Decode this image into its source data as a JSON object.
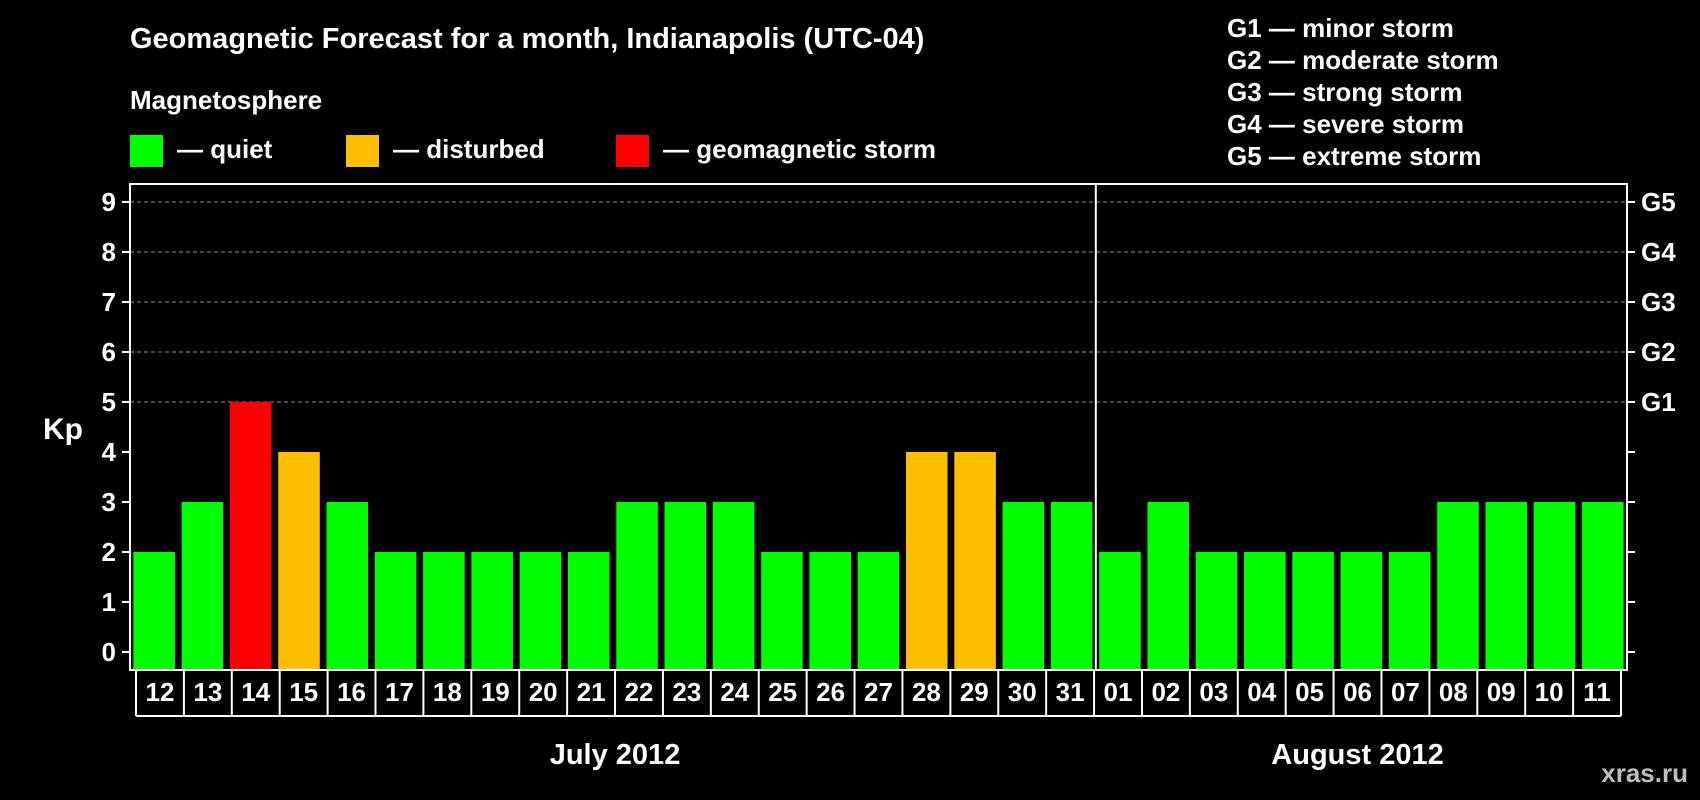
{
  "chart_data": {
    "type": "bar",
    "title": "Geomagnetic Forecast for a month, Indianapolis (UTC-04)",
    "ylabel": "Kp",
    "ylim": [
      0,
      9
    ],
    "yticks": [
      "0",
      "1",
      "2",
      "3",
      "4",
      "5",
      "6",
      "7",
      "8",
      "9"
    ],
    "right_axis_labels": [
      {
        "kp": 5,
        "label": "G1"
      },
      {
        "kp": 6,
        "label": "G2"
      },
      {
        "kp": 7,
        "label": "G3"
      },
      {
        "kp": 8,
        "label": "G4"
      },
      {
        "kp": 9,
        "label": "G5"
      }
    ],
    "legend_title": "Magnetosphere",
    "legend": [
      {
        "key": "quiet",
        "label": "— quiet",
        "color": "#00ff00"
      },
      {
        "key": "disturbed",
        "label": "— disturbed",
        "color": "#ffbf00"
      },
      {
        "key": "storm",
        "label": "— geomagnetic storm",
        "color": "#ff0000"
      }
    ],
    "storm_scale": [
      "G1 — minor storm",
      "G2 — moderate storm",
      "G3 — strong storm",
      "G4 — severe storm",
      "G5 — extreme storm"
    ],
    "categories": [
      "12",
      "13",
      "14",
      "15",
      "16",
      "17",
      "18",
      "19",
      "20",
      "21",
      "22",
      "23",
      "24",
      "25",
      "26",
      "27",
      "28",
      "29",
      "30",
      "31",
      "01",
      "02",
      "03",
      "04",
      "05",
      "06",
      "07",
      "08",
      "09",
      "10",
      "11"
    ],
    "values": [
      2,
      3,
      5,
      4,
      3,
      2,
      2,
      2,
      2,
      2,
      3,
      3,
      3,
      2,
      2,
      2,
      4,
      4,
      3,
      3,
      2,
      3,
      2,
      2,
      2,
      2,
      2,
      3,
      3,
      3,
      3
    ],
    "status": [
      "quiet",
      "quiet",
      "storm",
      "disturbed",
      "quiet",
      "quiet",
      "quiet",
      "quiet",
      "quiet",
      "quiet",
      "quiet",
      "quiet",
      "quiet",
      "quiet",
      "quiet",
      "quiet",
      "disturbed",
      "disturbed",
      "quiet",
      "quiet",
      "quiet",
      "quiet",
      "quiet",
      "quiet",
      "quiet",
      "quiet",
      "quiet",
      "quiet",
      "quiet",
      "quiet",
      "quiet"
    ],
    "months": [
      {
        "label": "July 2012",
        "start": 0,
        "count": 20
      },
      {
        "label": "August 2012",
        "start": 20,
        "count": 11
      }
    ],
    "grid": true
  },
  "watermark": "xras.ru"
}
